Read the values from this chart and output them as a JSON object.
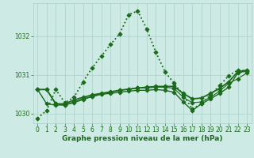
{
  "xlabel": "Graphe pression niveau de la mer (hPa)",
  "x": [
    0,
    1,
    2,
    3,
    4,
    5,
    6,
    7,
    8,
    9,
    10,
    11,
    12,
    13,
    14,
    15,
    16,
    17,
    18,
    19,
    20,
    21,
    22,
    23
  ],
  "series": [
    {
      "label": "line_dotted",
      "color": "#1a6b1a",
      "linestyle": "dotted",
      "linewidth": 1.3,
      "marker": "D",
      "markersize": 2.5,
      "markerfacecolor": "#1a6b1a",
      "values": [
        1029.88,
        1030.08,
        1030.62,
        1030.28,
        1030.42,
        1030.82,
        1031.18,
        1031.48,
        1031.78,
        1032.05,
        1032.55,
        1032.65,
        1032.18,
        1031.58,
        1031.08,
        1030.78,
        1030.48,
        1030.12,
        1030.25,
        1030.48,
        1030.72,
        1030.98,
        1031.12,
        1031.1
      ]
    },
    {
      "label": "line_solid1",
      "color": "#1a6b1a",
      "linestyle": "solid",
      "linewidth": 1.3,
      "marker": "D",
      "markersize": 2.5,
      "markerfacecolor": "#1a6b1a",
      "values": [
        1030.62,
        1030.62,
        1030.25,
        1030.25,
        1030.35,
        1030.42,
        1030.48,
        1030.52,
        1030.56,
        1030.6,
        1030.63,
        1030.66,
        1030.68,
        1030.7,
        1030.7,
        1030.7,
        1030.52,
        1030.38,
        1030.4,
        1030.52,
        1030.65,
        1030.82,
        1031.08,
        1031.12
      ]
    },
    {
      "label": "line_solid2",
      "color": "#1a6b1a",
      "linestyle": "solid",
      "linewidth": 1.0,
      "marker": "D",
      "markersize": 2.5,
      "markerfacecolor": "#1a6b1a",
      "values": [
        1030.62,
        1030.25,
        1030.22,
        1030.22,
        1030.3,
        1030.38,
        1030.44,
        1030.5,
        1030.52,
        1030.55,
        1030.58,
        1030.6,
        1030.6,
        1030.62,
        1030.6,
        1030.55,
        1030.3,
        1030.08,
        1030.25,
        1030.38,
        1030.52,
        1030.68,
        1031.05,
        1031.1
      ]
    },
    {
      "label": "line_dashed",
      "color": "#1a6b1a",
      "linestyle": "solid",
      "linewidth": 0.8,
      "marker": "D",
      "markersize": 2.5,
      "markerfacecolor": "#1a6b1a",
      "values": [
        1030.62,
        1030.62,
        1030.25,
        1030.22,
        1030.28,
        1030.36,
        1030.44,
        1030.5,
        1030.55,
        1030.6,
        1030.63,
        1030.66,
        1030.66,
        1030.68,
        1030.68,
        1030.65,
        1030.42,
        1030.28,
        1030.3,
        1030.42,
        1030.58,
        1030.78,
        1030.9,
        1031.05
      ]
    }
  ],
  "ylim": [
    1029.75,
    1032.85
  ],
  "yticks": [
    1030,
    1031,
    1032
  ],
  "xlim": [
    -0.5,
    23.5
  ],
  "xticks": [
    0,
    1,
    2,
    3,
    4,
    5,
    6,
    7,
    8,
    9,
    10,
    11,
    12,
    13,
    14,
    15,
    16,
    17,
    18,
    19,
    20,
    21,
    22,
    23
  ],
  "bg_color": "#cdeae4",
  "grid_color": "#aad0ca",
  "text_color": "#1a6b1a",
  "tick_fontsize": 5.5,
  "label_fontsize": 6.5,
  "label_fontweight": "bold"
}
